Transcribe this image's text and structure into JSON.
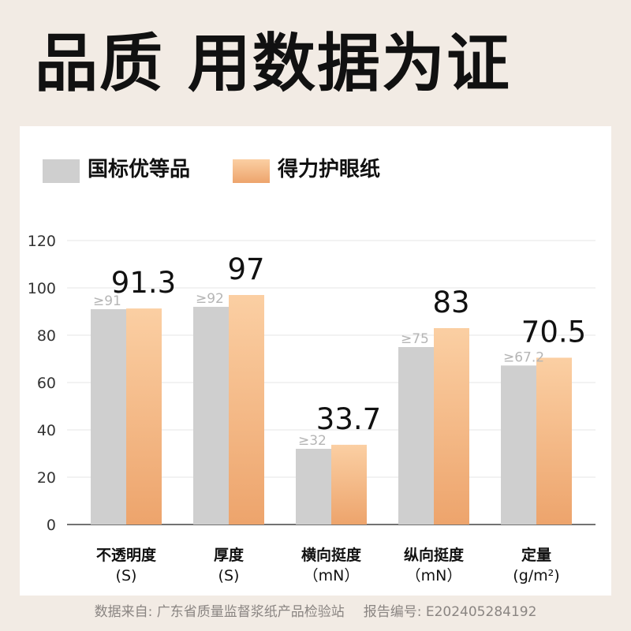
{
  "headline": "品质 用数据为证",
  "legend": [
    {
      "label": "国标优等品",
      "color": "#cfcfcf"
    },
    {
      "label": "得力护眼纸",
      "color": "#eda46c"
    }
  ],
  "chart_data": {
    "type": "bar",
    "categories": [
      {
        "name": "不透明度",
        "unit": "(S)"
      },
      {
        "name": "厚度",
        "unit": "(S)"
      },
      {
        "name": "横向挺度",
        "unit": "（mN）"
      },
      {
        "name": "纵向挺度",
        "unit": "（mN）"
      },
      {
        "name": "定量",
        "unit": "(g/m²)"
      }
    ],
    "series": [
      {
        "name": "国标优等品",
        "values": [
          91,
          92,
          32,
          75,
          67.2
        ],
        "labels": [
          "≥91",
          "≥92",
          "≥32",
          "≥75",
          "≥67.2"
        ],
        "color": "#cfcfcf"
      },
      {
        "name": "得力护眼纸",
        "values": [
          91.3,
          97,
          33.7,
          83,
          70.5
        ],
        "labels": [
          "91.3",
          "97",
          "33.7",
          "83",
          "70.5"
        ],
        "color_top": "#fbcfa3",
        "color_bottom": "#eda46c"
      }
    ],
    "ylim": [
      0,
      120
    ],
    "yticks": [
      "0",
      "20",
      "40",
      "60",
      "80",
      "100",
      "120"
    ],
    "grid": true,
    "legend_position": "top-left"
  },
  "source": {
    "origin": "数据来自: 广东省质量监督浆纸产品检验站",
    "report": "报告编号: E202405284192"
  }
}
